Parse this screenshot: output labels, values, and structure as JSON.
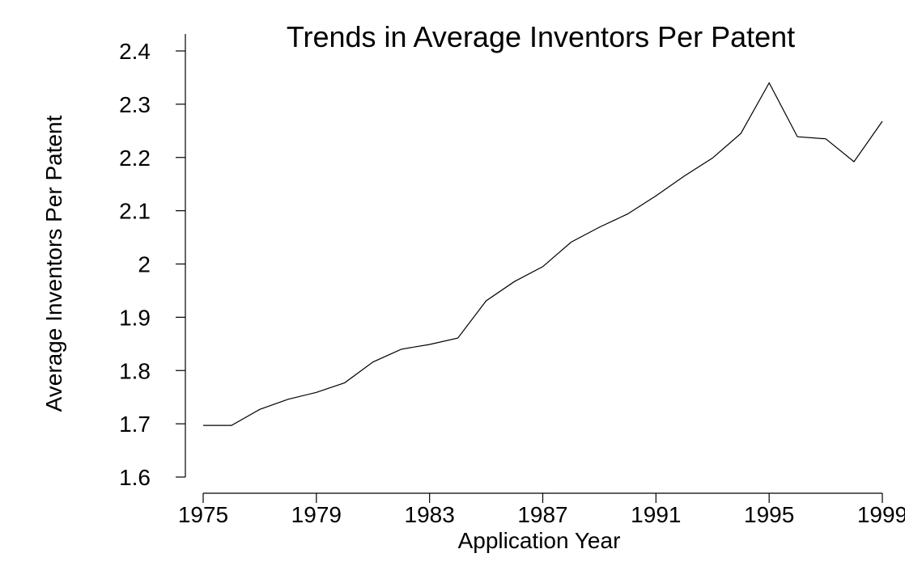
{
  "chart_data": {
    "type": "line",
    "title": "Trends in Average Inventors Per Patent",
    "xlabel": "Application Year",
    "ylabel": "Average Inventors Per Patent",
    "xlim": [
      1975,
      1999
    ],
    "ylim": [
      1.6,
      2.4
    ],
    "x_ticks": [
      1975,
      1979,
      1983,
      1987,
      1991,
      1995,
      1999
    ],
    "y_ticks": [
      1.6,
      1.7,
      1.8,
      1.9,
      2.0,
      2.1,
      2.2,
      2.3,
      2.4
    ],
    "x_tick_labels": [
      "1975",
      "1979",
      "1983",
      "1987",
      "1991",
      "1995",
      "1999"
    ],
    "y_tick_labels": [
      "1.6",
      "1.7",
      "1.8",
      "1.9",
      "2",
      "2.1",
      "2.2",
      "2.3",
      "2.4"
    ],
    "grid": false,
    "series": [
      {
        "x": [
          1975,
          1976,
          1977,
          1978,
          1979,
          1980,
          1981,
          1982,
          1983,
          1984,
          1985,
          1986,
          1987,
          1988,
          1989,
          1990,
          1991,
          1992,
          1993,
          1994,
          1995,
          1996,
          1997,
          1998,
          1999
        ],
        "values": [
          1.697,
          1.697,
          1.727,
          1.746,
          1.759,
          1.777,
          1.816,
          1.84,
          1.849,
          1.861,
          1.931,
          1.967,
          1.995,
          2.041,
          2.069,
          2.094,
          2.128,
          2.165,
          2.199,
          2.245,
          2.34,
          2.239,
          2.235,
          2.192,
          2.268
        ]
      }
    ]
  }
}
